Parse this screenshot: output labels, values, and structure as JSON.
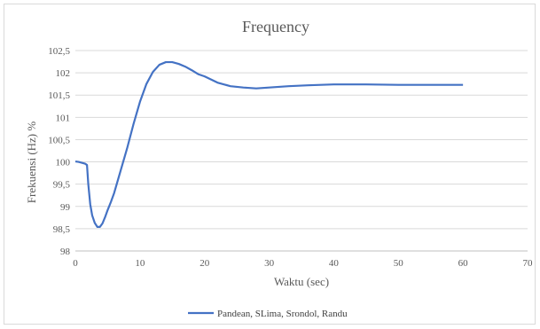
{
  "chart_data": {
    "type": "line",
    "title": "Frequency",
    "xlabel": "Waktu (sec)",
    "ylabel": "Frekuensi (Hz) %",
    "xlim": [
      0,
      70
    ],
    "ylim": [
      98,
      102.5
    ],
    "x_ticks": [
      "0",
      "10",
      "20",
      "30",
      "40",
      "50",
      "60",
      "70"
    ],
    "y_ticks": [
      "98",
      "98,5",
      "99",
      "99,5",
      "100",
      "100,5",
      "101",
      "101,5",
      "102",
      "102,5"
    ],
    "grid": true,
    "legend_position": "bottom",
    "color": "#4472c4",
    "series": [
      {
        "name": "Pandean, SLima, Srondol, Randu",
        "x": [
          0,
          0.5,
          1.0,
          1.5,
          1.8,
          2.0,
          2.3,
          2.6,
          3.0,
          3.4,
          3.8,
          4.2,
          4.6,
          5.0,
          5.5,
          6.0,
          7.0,
          8.0,
          9.0,
          10.0,
          11.0,
          12.0,
          13.0,
          14.0,
          15.0,
          16.0,
          17.0,
          18.0,
          19.0,
          20.0,
          22.0,
          24.0,
          26.0,
          28.0,
          30.0,
          33.0,
          36.0,
          40.0,
          45.0,
          50.0,
          55.0,
          60.0
        ],
        "y": [
          100.01,
          100.0,
          99.98,
          99.96,
          99.93,
          99.5,
          99.05,
          98.8,
          98.63,
          98.54,
          98.54,
          98.62,
          98.76,
          98.92,
          99.1,
          99.3,
          99.8,
          100.3,
          100.85,
          101.35,
          101.75,
          102.02,
          102.18,
          102.24,
          102.24,
          102.2,
          102.14,
          102.06,
          101.97,
          101.92,
          101.78,
          101.7,
          101.67,
          101.65,
          101.67,
          101.7,
          101.72,
          101.74,
          101.74,
          101.73,
          101.73,
          101.73
        ]
      }
    ]
  }
}
